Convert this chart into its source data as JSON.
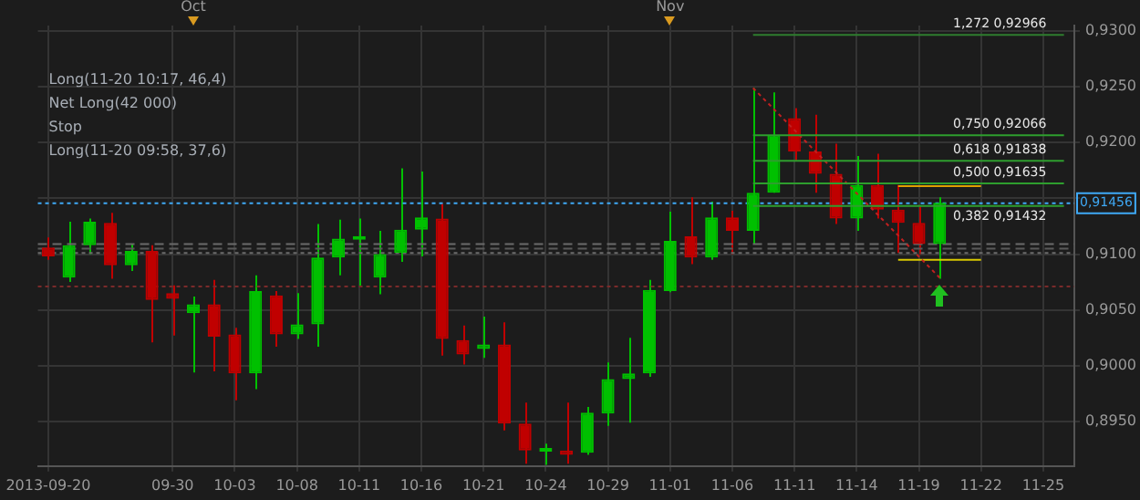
{
  "chart_data": {
    "type": "candlestick",
    "categories": [
      "2013-09-20",
      null,
      null,
      null,
      null,
      null,
      "09-30",
      null,
      null,
      "10-03",
      null,
      null,
      "10-08",
      null,
      null,
      "10-11",
      null,
      null,
      "10-16",
      null,
      null,
      "10-21",
      null,
      null,
      "10-24",
      null,
      null,
      "10-29",
      null,
      null,
      "11-01",
      null,
      null,
      "11-06",
      null,
      null,
      "11-11",
      null,
      null,
      "11-14",
      null,
      null,
      "11-19",
      null,
      null,
      "11-22",
      null,
      null,
      "11-25",
      null
    ],
    "ohlc": [
      [
        0.9106,
        0.9115,
        0.9095,
        0.9098
      ],
      [
        0.9079,
        0.9129,
        0.9075,
        0.9108
      ],
      [
        0.9108,
        0.9132,
        0.91,
        0.9129
      ],
      [
        0.9128,
        0.9137,
        0.9078,
        0.909
      ],
      [
        0.909,
        0.9109,
        0.9085,
        0.9103
      ],
      [
        0.9103,
        0.9108,
        0.9021,
        0.9059
      ],
      [
        0.9065,
        0.9072,
        0.9027,
        0.906
      ],
      [
        0.9047,
        0.9062,
        0.8994,
        0.9055
      ],
      [
        0.9055,
        0.9077,
        0.8995,
        0.9026
      ],
      [
        0.9028,
        0.9034,
        0.8969,
        0.8993
      ],
      [
        0.8993,
        0.9081,
        0.8979,
        0.9067
      ],
      [
        0.9063,
        0.9067,
        0.9017,
        0.9028
      ],
      [
        0.9028,
        0.9065,
        0.9024,
        0.9037
      ],
      [
        0.9037,
        0.9127,
        0.9017,
        0.9097
      ],
      [
        0.9097,
        0.9131,
        0.9081,
        0.9114
      ],
      [
        0.9113,
        0.9132,
        0.9071,
        0.9114
      ],
      [
        0.9079,
        0.9121,
        0.9064,
        0.91
      ],
      [
        0.9101,
        0.9177,
        0.9093,
        0.9122
      ],
      [
        0.9122,
        0.9174,
        0.9098,
        0.9133
      ],
      [
        0.9132,
        0.9145,
        0.9009,
        0.9024
      ],
      [
        0.9023,
        0.9036,
        0.9001,
        0.901
      ],
      [
        0.9015,
        0.9044,
        0.9007,
        0.9019
      ],
      [
        0.9019,
        0.9039,
        0.8942,
        0.8948
      ],
      [
        0.8948,
        0.8967,
        0.8912,
        0.8924
      ],
      [
        0.8923,
        0.893,
        0.8911,
        0.8925
      ],
      [
        0.8924,
        0.8967,
        0.8912,
        0.892
      ],
      [
        0.8922,
        0.8963,
        0.892,
        0.8958
      ],
      [
        0.8957,
        0.9003,
        0.8946,
        0.8988
      ],
      [
        0.8988,
        0.9025,
        0.8949,
        0.8993
      ],
      [
        0.8993,
        0.9077,
        0.899,
        0.9068
      ],
      [
        0.9067,
        0.9138,
        0.9066,
        0.9112
      ],
      [
        0.9116,
        0.9151,
        0.9091,
        0.9097
      ],
      [
        0.9097,
        0.9147,
        0.9095,
        0.9133
      ],
      [
        0.9133,
        0.9139,
        0.91,
        0.9121
      ],
      [
        0.9121,
        0.9249,
        0.9109,
        0.9155
      ],
      [
        0.9155,
        0.9245,
        0.9155,
        0.9207
      ],
      [
        0.9222,
        0.9231,
        0.9184,
        0.9192
      ],
      [
        0.9192,
        0.9225,
        0.9155,
        0.9172
      ],
      [
        0.9172,
        0.9199,
        0.9127,
        0.9132
      ],
      [
        0.9132,
        0.9188,
        0.9121,
        0.9162
      ],
      [
        0.9162,
        0.919,
        0.9132,
        0.914
      ],
      [
        0.914,
        0.9162,
        0.9101,
        0.9128
      ],
      [
        0.9128,
        0.9143,
        0.91,
        0.9109
      ],
      [
        0.9109,
        0.9151,
        0.9078,
        0.9146
      ],
      null,
      null,
      null,
      null,
      null,
      null
    ],
    "colors": [
      "#c00000",
      "#00c000",
      "#00c000",
      "#c00000",
      "#00c000",
      "#c00000",
      "#c00000",
      "#00c000",
      "#c00000",
      "#c00000",
      "#00c000",
      "#c00000",
      "#00c000",
      "#00c000",
      "#00c000",
      "#00c000",
      "#00c000",
      "#00c000",
      "#00c000",
      "#c00000",
      "#c00000",
      "#00c000",
      "#c00000",
      "#c00000",
      "#00c000",
      "#c00000",
      "#00c000",
      "#00c000",
      "#00c000",
      "#00c000",
      "#00c000",
      "#c00000",
      "#00c000",
      "#c00000",
      "#00c000",
      "#00c000",
      "#c00000",
      "#c00000",
      "#c00000",
      "#00c000",
      "#c00000",
      "#c00000",
      "#c00000",
      "#00c000",
      null,
      null,
      null,
      null,
      null,
      null
    ],
    "series": [
      {
        "type": "line",
        "name": "1,272 0,92966",
        "color": "#2e7d2e",
        "line_style": "solid",
        "values": [
          null,
          null,
          null,
          null,
          null,
          null,
          null,
          null,
          null,
          null,
          null,
          null,
          null,
          null,
          null,
          null,
          null,
          null,
          null,
          null,
          null,
          null,
          null,
          null,
          null,
          null,
          null,
          null,
          null,
          null,
          null,
          null,
          null,
          null,
          0.92966,
          0.92966,
          0.92966,
          0.92966,
          0.92966,
          0.92966,
          0.92966,
          0.92966,
          0.92966,
          0.92966,
          0.92966,
          0.92966,
          0.92966,
          0.92966,
          0.92966,
          0.92966
        ]
      },
      {
        "type": "line",
        "name": "0,750 0,92066",
        "color": "#2e9e2e",
        "line_style": "solid",
        "values": [
          null,
          null,
          null,
          null,
          null,
          null,
          null,
          null,
          null,
          null,
          null,
          null,
          null,
          null,
          null,
          null,
          null,
          null,
          null,
          null,
          null,
          null,
          null,
          null,
          null,
          null,
          null,
          null,
          null,
          null,
          null,
          null,
          null,
          null,
          0.92066,
          0.92066,
          0.92066,
          0.92066,
          0.92066,
          0.92066,
          0.92066,
          0.92066,
          0.92066,
          0.92066,
          0.92066,
          0.92066,
          0.92066,
          0.92066,
          0.92066,
          0.92066
        ]
      },
      {
        "type": "line",
        "name": "0,618 0,91838",
        "color": "#2e9e2e",
        "line_style": "solid",
        "values": [
          null,
          null,
          null,
          null,
          null,
          null,
          null,
          null,
          null,
          null,
          null,
          null,
          null,
          null,
          null,
          null,
          null,
          null,
          null,
          null,
          null,
          null,
          null,
          null,
          null,
          null,
          null,
          null,
          null,
          null,
          null,
          null,
          null,
          null,
          0.91838,
          0.91838,
          0.91838,
          0.91838,
          0.91838,
          0.91838,
          0.91838,
          0.91838,
          0.91838,
          0.91838,
          0.91838,
          0.91838,
          0.91838,
          0.91838,
          0.91838,
          0.91838
        ]
      },
      {
        "type": "line",
        "name": "0,500 0,91635",
        "color": "#2e9e2e",
        "line_style": "solid",
        "values": [
          null,
          null,
          null,
          null,
          null,
          null,
          null,
          null,
          null,
          null,
          null,
          null,
          null,
          null,
          null,
          null,
          null,
          null,
          null,
          null,
          null,
          null,
          null,
          null,
          null,
          null,
          null,
          null,
          null,
          null,
          null,
          null,
          null,
          null,
          0.91635,
          0.91635,
          0.91635,
          0.91635,
          0.91635,
          0.91635,
          0.91635,
          0.91635,
          0.91635,
          0.91635,
          0.91635,
          0.91635,
          0.91635,
          0.91635,
          0.91635,
          0.91635
        ]
      },
      {
        "type": "line",
        "name": "0,382 0,91432",
        "color": "#2e9e2e",
        "line_style": "solid",
        "values": [
          null,
          null,
          null,
          null,
          null,
          null,
          null,
          null,
          null,
          null,
          null,
          null,
          null,
          null,
          null,
          null,
          null,
          null,
          null,
          null,
          null,
          null,
          null,
          null,
          null,
          null,
          null,
          null,
          null,
          null,
          null,
          null,
          null,
          null,
          0.91432,
          0.91432,
          0.91432,
          0.91432,
          0.91432,
          0.91432,
          0.91432,
          0.91432,
          0.91432,
          0.91432,
          0.91432,
          0.91432,
          0.91432,
          0.91432,
          0.91432,
          0.91432
        ]
      },
      {
        "type": "line",
        "color": "#c02020",
        "line_style": "dotted",
        "values": [
          null,
          null,
          null,
          null,
          null,
          null,
          null,
          null,
          null,
          null,
          null,
          null,
          null,
          null,
          null,
          null,
          null,
          null,
          null,
          null,
          null,
          null,
          null,
          null,
          null,
          null,
          null,
          null,
          null,
          null,
          null,
          null,
          null,
          null,
          0.9249,
          null,
          null,
          null,
          null,
          null,
          null,
          null,
          null,
          0.9079,
          null,
          null,
          null,
          null,
          null,
          null
        ]
      },
      {
        "type": "line",
        "color": "#e0a000",
        "line_style": "solid",
        "values": [
          null,
          null,
          null,
          null,
          null,
          null,
          null,
          null,
          null,
          null,
          null,
          null,
          null,
          null,
          null,
          null,
          null,
          null,
          null,
          null,
          null,
          null,
          null,
          null,
          null,
          null,
          null,
          null,
          null,
          null,
          null,
          null,
          null,
          null,
          null,
          null,
          null,
          null,
          null,
          null,
          null,
          0.9161,
          0.9161,
          0.9161,
          0.9161,
          0.9161,
          null,
          null,
          null,
          null
        ]
      },
      {
        "type": "line",
        "color": "#d8c800",
        "line_style": "solid",
        "values": [
          null,
          null,
          null,
          null,
          null,
          null,
          null,
          null,
          null,
          null,
          null,
          null,
          null,
          null,
          null,
          null,
          null,
          null,
          null,
          null,
          null,
          null,
          null,
          null,
          null,
          null,
          null,
          null,
          null,
          null,
          null,
          null,
          null,
          null,
          null,
          null,
          null,
          null,
          null,
          null,
          null,
          0.9095,
          0.9095,
          0.9095,
          0.9095,
          0.9095,
          null,
          null,
          null,
          null
        ]
      }
    ],
    "ref_lines": [
      {
        "axis": "y",
        "value": 0.9109,
        "line_style": "dashed",
        "color": "#6a6a6a"
      },
      {
        "axis": "y",
        "value": 0.9105,
        "line_style": "dashed",
        "color": "#5a5a5a"
      },
      {
        "axis": "y",
        "value": 0.9101,
        "line_style": "dotted",
        "color": "#6a6a6a"
      },
      {
        "axis": "y",
        "value": 0.9071,
        "line_style": "dotted",
        "color": "#7a2a2a"
      },
      {
        "axis": "y",
        "value": 0.91456,
        "label": "0,91456",
        "line_style": "dotted",
        "color": "#3fa9f5"
      }
    ],
    "annotations": [
      "Oct",
      "Nov",
      "Long(11-20 10:17, 46,4)",
      "Net Long(42 000)",
      "Stop",
      "Long(11-20 09:58, 37,6)"
    ],
    "ylim": [
      0.891,
      0.9305
    ],
    "yticks": [
      {
        "value": 0.895,
        "label": "0,8950"
      },
      {
        "value": 0.9,
        "label": "0,9000"
      },
      {
        "value": 0.905,
        "label": "0,9050"
      },
      {
        "value": 0.91,
        "label": "0,9100"
      },
      {
        "value": 0.915,
        "label": null
      },
      {
        "value": 0.92,
        "label": "0,9200"
      },
      {
        "value": 0.925,
        "label": "0,9250"
      },
      {
        "value": 0.93,
        "label": "0,9300"
      }
    ],
    "grid": true,
    "legend": false
  }
}
